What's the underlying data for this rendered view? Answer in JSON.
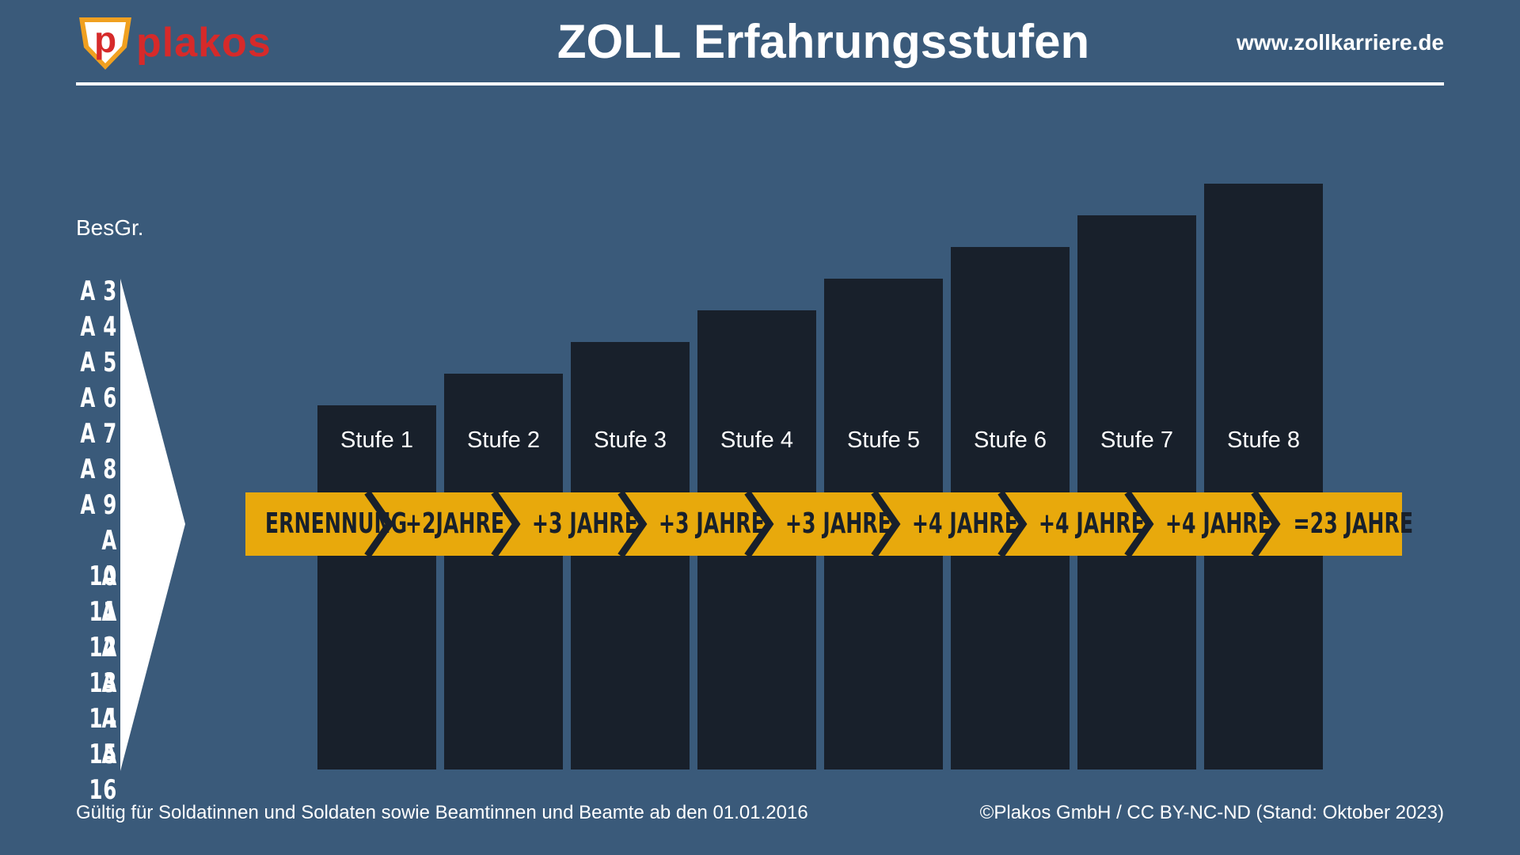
{
  "header": {
    "logo_text": "plakos",
    "title": "ZOLL Erfahrungsstufen",
    "website": "www.zollkarriere.de"
  },
  "axis": {
    "label": "BesGr.",
    "grades": [
      "A 3",
      "A 4",
      "A 5",
      "A 6",
      "A 7",
      "A 8",
      "A 9",
      "A 10",
      "A 11",
      "A 12",
      "A 13",
      "A 14",
      "A 15",
      "A 16"
    ]
  },
  "steps": [
    {
      "label": "Stufe 1",
      "level": 1
    },
    {
      "label": "Stufe 2",
      "level": 2
    },
    {
      "label": "Stufe 3",
      "level": 3
    },
    {
      "label": "Stufe 4",
      "level": 4
    },
    {
      "label": "Stufe 5",
      "level": 5
    },
    {
      "label": "Stufe 6",
      "level": 6
    },
    {
      "label": "Stufe 7",
      "level": 7
    },
    {
      "label": "Stufe 8",
      "level": 8
    }
  ],
  "timeline": [
    "ERNENNUNG",
    "+2JAHRE",
    "+3 JAHRE",
    "+3 JAHRE",
    "+3 JAHRE",
    "+4 JAHRE",
    "+4 JAHRE",
    "+4 JAHRE",
    "=23 JAHRE"
  ],
  "colors": {
    "background": "#3a5a7a",
    "bar": "#18202b",
    "ribbon": "#e8a90c",
    "logo_red": "#d62a2a",
    "logo_orange": "#f0a020"
  },
  "footer": {
    "left": "Gültig für Soldatinnen und Soldaten sowie Beamtinnen und Beamte ab den 01.01.2016",
    "right": "©Plakos GmbH / CC BY-NC-ND (Stand: Oktober 2023)"
  }
}
